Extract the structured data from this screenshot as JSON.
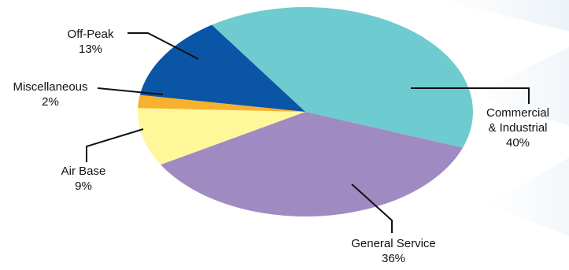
{
  "chart_data": {
    "type": "pie",
    "title": "",
    "slices": [
      {
        "label": "Commercial & Industrial",
        "label_lines": [
          "Commercial",
          "& Industrial"
        ],
        "value": 40,
        "pct_text": "40%",
        "color": "#6ECBD0"
      },
      {
        "label": "General Service",
        "label_lines": [
          "General Service"
        ],
        "value": 36,
        "pct_text": "36%",
        "color": "#A08AC2"
      },
      {
        "label": "Air Base",
        "label_lines": [
          "Air Base"
        ],
        "value": 9,
        "pct_text": "9%",
        "color": "#FFF79A"
      },
      {
        "label": "Miscellaneous",
        "label_lines": [
          "Miscellaneous"
        ],
        "value": 2,
        "pct_text": "2%",
        "color": "#F7B12E"
      },
      {
        "label": "Off-Peak",
        "label_lines": [
          "Off-Peak"
        ],
        "value": 13,
        "pct_text": "13%",
        "color": "#0A55A6"
      }
    ],
    "legend": "none",
    "labels": "outside with leader lines"
  }
}
